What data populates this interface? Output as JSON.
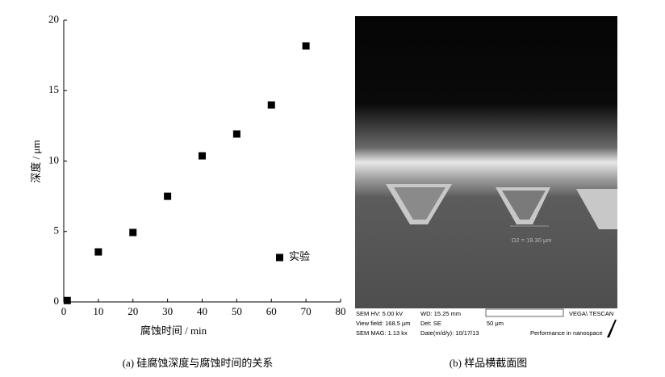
{
  "chart_data": {
    "type": "scatter",
    "x_label": "腐蚀时间 / min",
    "y_label": "深度 / μm",
    "series": [
      {
        "name": "实验",
        "color": "#000000",
        "x": [
          1,
          10,
          20,
          30,
          40,
          50,
          60,
          70
        ],
        "values": [
          0.1,
          3.55,
          4.93,
          7.5,
          10.37,
          11.92,
          13.98,
          18.17
        ]
      }
    ],
    "xlim": [
      0,
      80
    ],
    "xticks": [
      0,
      10,
      20,
      30,
      40,
      50,
      60,
      70,
      80
    ],
    "ylim": [
      0,
      20
    ],
    "yticks": [
      0,
      5,
      10,
      15,
      20
    ],
    "grid": false,
    "legend": "lower right"
  },
  "figure": {
    "caption_a": "(a) 硅腐蚀深度与腐蚀时间的关系",
    "caption_b": "(b) 样品横截面图",
    "sem": {
      "measure": "D2 = 19.30 μm",
      "hv": "SEM HV: 5.00 kV",
      "wd": "WD: 15.25 mm",
      "brand": "VEGA\\ TESCAN",
      "view_field": "View field: 168.5 μm",
      "det": "Det: SE",
      "scale": "50 μm",
      "mag": "SEM MAG: 1.13 kx",
      "date": "Date(m/d/y): 10/17/13",
      "slogan": "Performance in nanospace"
    }
  }
}
